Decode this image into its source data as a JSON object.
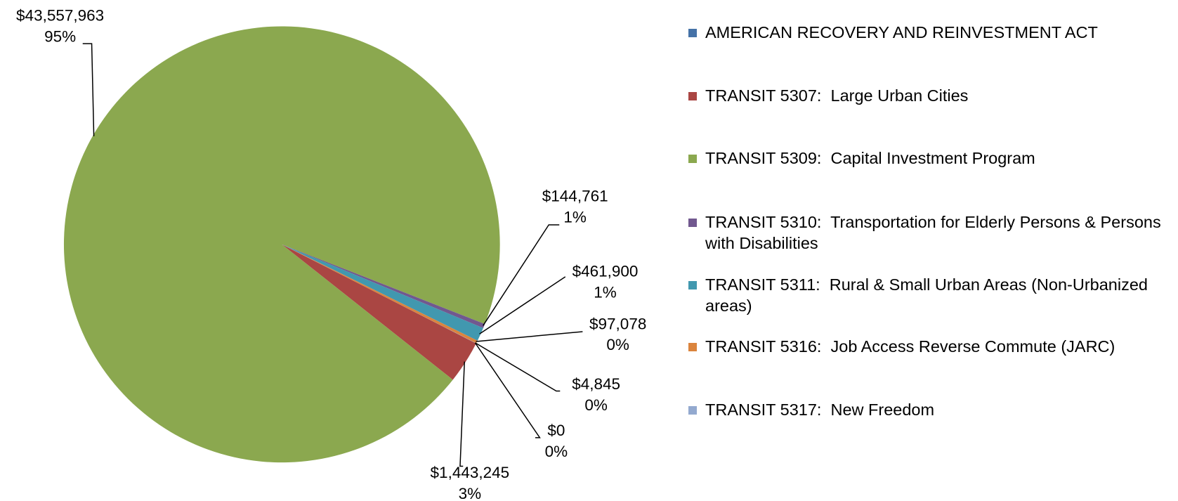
{
  "chart_data": {
    "type": "pie",
    "categories": [
      "AMERICAN RECOVERY AND REINVESTMENT ACT",
      "TRANSIT 5307:  Large Urban Cities",
      "TRANSIT 5309:  Capital Investment Program",
      "TRANSIT 5310:  Transportation for Elderly Persons & Persons with Disabilities",
      "TRANSIT 5311:  Rural & Small Urban Areas (Non-Urbanized areas)",
      "TRANSIT 5316:  Job Access Reverse Commute (JARC)",
      "TRANSIT 5317:  New Freedom"
    ],
    "values": [
      0,
      1443245,
      43557963,
      144761,
      461900,
      97078,
      4845
    ],
    "value_labels": [
      "$0",
      "$1,443,245",
      "$43,557,963",
      "$144,761",
      "$461,900",
      "$97,078",
      "$4,845"
    ],
    "percents": [
      0,
      3,
      95,
      1,
      1,
      0,
      0
    ],
    "percent_labels": [
      "0%",
      "3%",
      "95%",
      "1%",
      "1%",
      "0%",
      "0%"
    ],
    "colors": [
      "#4572a7",
      "#aa4643",
      "#8ba84f",
      "#71588f",
      "#4198af",
      "#db843d",
      "#93a9cf"
    ],
    "legend": "right"
  }
}
